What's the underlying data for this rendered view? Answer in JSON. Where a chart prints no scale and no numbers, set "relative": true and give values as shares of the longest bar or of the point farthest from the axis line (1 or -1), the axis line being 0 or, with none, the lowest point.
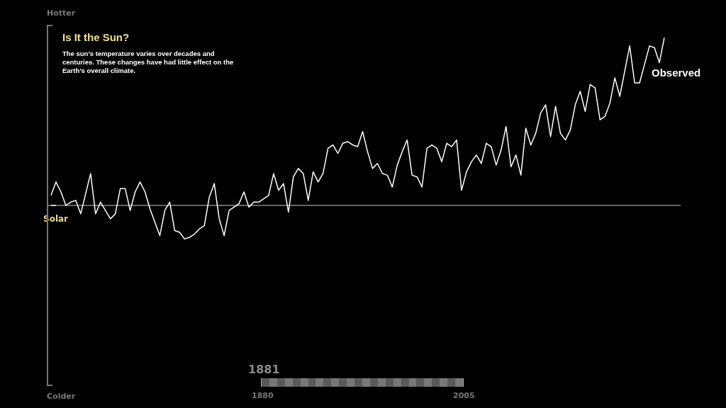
{
  "chart_data": {
    "type": "line",
    "relative": true,
    "title": "Is It the Sun?",
    "subtitle": "The sun’s temperature varies over decades and centuries.  These changes have had little effect on the Earth’s overall climate.",
    "annotations": [
      "Hotter",
      "Colder",
      "1881",
      "1880",
      "2005"
    ],
    "legend": false,
    "marker": "none",
    "line_style": "solid",
    "categories": [
      null,
      null,
      null,
      null,
      null,
      null,
      null,
      null,
      null,
      null,
      null,
      null,
      null,
      null,
      null,
      null,
      null,
      null,
      null,
      null,
      null,
      null,
      null,
      null,
      null,
      null,
      null,
      null,
      null,
      null,
      null,
      null,
      null,
      null,
      null,
      null,
      null,
      null,
      null,
      null,
      null,
      null,
      null,
      null,
      null,
      null,
      null,
      null,
      null,
      null,
      null,
      null,
      null,
      null,
      null,
      null,
      null,
      null,
      null,
      null,
      null,
      null,
      null,
      null,
      null,
      null,
      null,
      null,
      null,
      null,
      null,
      null,
      null,
      null,
      null,
      null,
      null,
      null,
      null,
      null,
      null,
      null,
      null,
      null,
      null,
      null,
      null,
      null,
      null,
      null,
      null,
      null,
      null,
      null,
      null,
      null,
      null,
      null,
      null,
      null,
      null,
      null,
      null,
      null,
      null,
      null,
      null,
      null,
      null,
      null,
      null,
      null,
      null,
      null,
      null,
      null,
      null,
      null,
      null,
      null,
      null,
      null,
      null,
      null,
      null
    ],
    "series": [
      {
        "name": "Observed",
        "color": "#ffffff",
        "values": [
          0.06,
          0.14,
          0.08,
          0,
          0.02,
          0.03,
          -0.05,
          0.07,
          0.19,
          -0.05,
          0.02,
          -0.03,
          -0.08,
          -0.05,
          0.1,
          0.1,
          -0.03,
          0.08,
          0.14,
          0.08,
          -0.02,
          -0.1,
          -0.18,
          -0.03,
          0.02,
          -0.15,
          -0.16,
          -0.2,
          -0.19,
          -0.17,
          -0.14,
          -0.12,
          0.05,
          0.13,
          -0.08,
          -0.18,
          -0.03,
          -0.01,
          0.01,
          0.08,
          -0.01,
          0.02,
          0.02,
          0.04,
          0.06,
          0.19,
          0.09,
          0.13,
          -0.04,
          0.17,
          0.22,
          0.19,
          0.03,
          0.2,
          0.14,
          0.19,
          0.34,
          0.36,
          0.31,
          0.37,
          0.38,
          0.36,
          0.35,
          0.44,
          0.32,
          0.22,
          0.25,
          0.19,
          0.18,
          0.11,
          0.24,
          0.32,
          0.39,
          0.18,
          0.17,
          0.11,
          0.34,
          0.36,
          0.34,
          0.26,
          0.37,
          0.35,
          0.39,
          0.09,
          0.2,
          0.26,
          0.3,
          0.25,
          0.37,
          0.35,
          0.24,
          0.33,
          0.47,
          0.23,
          0.3,
          0.18,
          0.46,
          0.36,
          0.43,
          0.55,
          0.6,
          0.41,
          0.59,
          0.43,
          0.39,
          0.45,
          0.6,
          0.68,
          0.56,
          0.72,
          0.7,
          0.51,
          0.53,
          0.61,
          0.76,
          0.65,
          0.8,
          0.95,
          0.73,
          0.73,
          0.84,
          0.95,
          0.94,
          0.85,
          1
        ]
      },
      {
        "name": "Solar",
        "color": "#e8d78a",
        "values": [
          0,
          0,
          null,
          null,
          null,
          null,
          null,
          null,
          null,
          null,
          null,
          null,
          null,
          null,
          null,
          null,
          null,
          null,
          null,
          null,
          null,
          null,
          null,
          null,
          null,
          null,
          null,
          null,
          null,
          null,
          null,
          null,
          null,
          null,
          null,
          null,
          null,
          null,
          null,
          null,
          null,
          null,
          null,
          null,
          null,
          null,
          null,
          null,
          null,
          null,
          null,
          null,
          null,
          null,
          null,
          null,
          null,
          null,
          null,
          null,
          null,
          null,
          null,
          null,
          null,
          null,
          null,
          null,
          null,
          null,
          null,
          null,
          null,
          null,
          null,
          null,
          null,
          null,
          null,
          null,
          null,
          null,
          null,
          null,
          null,
          null,
          null,
          null,
          null,
          null,
          null,
          null,
          null,
          null,
          null,
          null,
          null,
          null,
          null,
          null,
          null,
          null,
          null,
          null,
          null,
          null,
          null,
          null,
          null,
          null,
          null,
          null,
          null,
          null,
          null,
          null,
          null,
          null,
          null,
          null,
          null,
          null,
          null,
          null,
          null
        ]
      }
    ]
  }
}
